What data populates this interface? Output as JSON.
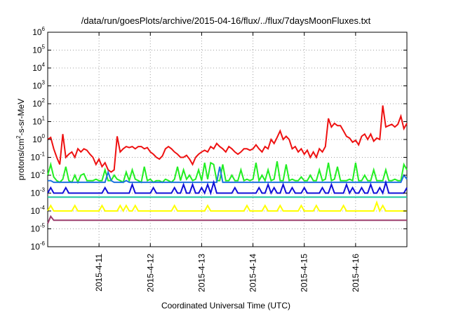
{
  "chart_data": {
    "type": "line",
    "title": "/data/run/goesPlots/archive/2015-04-16/flux/../flux/7daysMoonFluxes.txt",
    "xlabel": "Coordinated Universal Time (UTC)",
    "ylabel": "protons/cm²-s-sr-MeV",
    "ylabel_parts": {
      "a": "protons/cm",
      "sup": "2",
      "b": "-s-sr-MeV"
    },
    "yscale": "log",
    "ylim": [
      1e-06,
      1000000.0
    ],
    "xlim": [
      0,
      7
    ],
    "grid": true,
    "y_ticks": [
      {
        "exp": "-6",
        "value": 1e-06
      },
      {
        "exp": "-5",
        "value": 1e-05
      },
      {
        "exp": "-4",
        "value": 0.0001
      },
      {
        "exp": "-3",
        "value": 0.001
      },
      {
        "exp": "-2",
        "value": 0.01
      },
      {
        "exp": "-1",
        "value": 0.1
      },
      {
        "exp": "0",
        "value": 1
      },
      {
        "exp": "1",
        "value": 10
      },
      {
        "exp": "2",
        "value": 100
      },
      {
        "exp": "3",
        "value": 1000
      },
      {
        "exp": "4",
        "value": 10000
      },
      {
        "exp": "5",
        "value": 100000
      },
      {
        "exp": "6",
        "value": 1000000
      }
    ],
    "y_tick_base": "10",
    "x_ticks": [
      {
        "label": "2015-4-11",
        "value": 1
      },
      {
        "label": "2015-4-12",
        "value": 2
      },
      {
        "label": "2015-4-13",
        "value": 3
      },
      {
        "label": "2015-4-14",
        "value": 4
      },
      {
        "label": "2015-4-15",
        "value": 5
      },
      {
        "label": "2015-4-16",
        "value": 6
      }
    ],
    "series": [
      {
        "color": "#ee1111",
        "values": [
          1,
          1.3,
          0.3,
          0.1,
          0.04,
          2,
          0.1,
          0.15,
          0.2,
          0.1,
          0.3,
          0.2,
          0.3,
          0.25,
          0.15,
          0.1,
          0.04,
          0.08,
          0.03,
          0.05,
          0.02,
          0.015,
          0.02,
          1.5,
          0.2,
          0.3,
          0.4,
          0.35,
          0.4,
          0.3,
          0.4,
          0.4,
          0.3,
          0.35,
          0.2,
          0.15,
          0.1,
          0.08,
          0.12,
          0.3,
          0.4,
          0.3,
          0.2,
          0.15,
          0.1,
          0.1,
          0.13,
          0.08,
          0.04,
          0.1,
          0.15,
          0.2,
          0.25,
          0.2,
          0.4,
          0.3,
          0.6,
          0.4,
          0.3,
          0.2,
          0.4,
          0.3,
          0.2,
          0.15,
          0.2,
          0.3,
          0.3,
          0.25,
          0.3,
          0.5,
          0.3,
          0.2,
          0.4,
          0.3,
          1,
          0.6,
          1.3,
          3,
          1,
          1.5,
          1,
          0.3,
          0.4,
          0.2,
          0.3,
          0.15,
          0.25,
          0.1,
          0.2,
          0.1,
          0.3,
          0.2,
          0.4,
          15,
          5,
          8,
          6,
          6,
          3,
          1.5,
          1.2,
          0.7,
          0.9,
          0.5,
          1.5,
          2,
          1,
          2,
          0.8,
          1.2,
          1,
          80,
          5,
          6,
          7,
          5,
          7,
          20,
          4,
          8
        ]
      },
      {
        "color": "#22ee22",
        "values": [
          0.01,
          0.04,
          0.008,
          0.005,
          0.004,
          0.006,
          0.03,
          0.005,
          0.004,
          0.01,
          0.004,
          0.01,
          0.012,
          0.005,
          0.005,
          0.005,
          0.006,
          0.005,
          0.005,
          0.02,
          0.005,
          0.005,
          0.01,
          0.006,
          0.005,
          0.004,
          0.015,
          0.005,
          0.02,
          0.006,
          0.005,
          0.004,
          0.03,
          0.005,
          0.006,
          0.004,
          0.005,
          0.005,
          0.004,
          0.006,
          0.005,
          0.004,
          0.006,
          0.03,
          0.005,
          0.02,
          0.006,
          0.01,
          0.005,
          0.006,
          0.02,
          0.005,
          0.05,
          0.006,
          0.05,
          0.04,
          0.005,
          0.005,
          0.04,
          0.005,
          0.005,
          0.01,
          0.005,
          0.005,
          0.02,
          0.005,
          0.006,
          0.005,
          0.006,
          0.05,
          0.005,
          0.01,
          0.005,
          0.02,
          0.005,
          0.006,
          0.06,
          0.005,
          0.005,
          0.04,
          0.005,
          0.006,
          0.005,
          0.005,
          0.008,
          0.005,
          0.005,
          0.01,
          0.005,
          0.005,
          0.02,
          0.005,
          0.006,
          0.05,
          0.005,
          0.006,
          0.03,
          0.005,
          0.005,
          0.005,
          0.006,
          0.005,
          0.05,
          0.005,
          0.005,
          0.01,
          0.005,
          0.005,
          0.02,
          0.005,
          0.005,
          0.005,
          0.02,
          0.005,
          0.005,
          0.006,
          0.005,
          0.005,
          0.04,
          0.02
        ]
      },
      {
        "color": "#1e72e0",
        "values": [
          0.005,
          0.005,
          0.004,
          0.004,
          0.004,
          0.004,
          0.004,
          0.004,
          0.004,
          0.004,
          0.004,
          0.004,
          0.004,
          0.004,
          0.004,
          0.004,
          0.004,
          0.004,
          0.004,
          0.004,
          0.015,
          0.005,
          0.004,
          0.004,
          0.004,
          0.004,
          0.005,
          0.004,
          0.004,
          0.004,
          0.004,
          0.004,
          0.004,
          0.004,
          0.004,
          0.004,
          0.004,
          0.004,
          0.004,
          0.004,
          0.004,
          0.004,
          0.004,
          0.004,
          0.004,
          0.004,
          0.004,
          0.004,
          0.004,
          0.004,
          0.004,
          0.004,
          0.004,
          0.004,
          0.004,
          0.004,
          0.004,
          0.03,
          0.004,
          0.004,
          0.004,
          0.004,
          0.004,
          0.004,
          0.004,
          0.004,
          0.004,
          0.004,
          0.004,
          0.004,
          0.004,
          0.004,
          0.004,
          0.004,
          0.004,
          0.004,
          0.004,
          0.004,
          0.004,
          0.004,
          0.004,
          0.004,
          0.004,
          0.004,
          0.004,
          0.004,
          0.004,
          0.004,
          0.004,
          0.004,
          0.004,
          0.004,
          0.004,
          0.004,
          0.004,
          0.004,
          0.004,
          0.004,
          0.004,
          0.004,
          0.004,
          0.004,
          0.004,
          0.004,
          0.004,
          0.004,
          0.004,
          0.004,
          0.004,
          0.004,
          0.004,
          0.004,
          0.004,
          0.004,
          0.004,
          0.004,
          0.004,
          0.004,
          0.01,
          0.006
        ]
      },
      {
        "color": "#1010d8",
        "values": [
          0.001,
          0.002,
          0.001,
          0.001,
          0.001,
          0.001,
          0.002,
          0.001,
          0.001,
          0.001,
          0.001,
          0.001,
          0.001,
          0.001,
          0.001,
          0.001,
          0.001,
          0.001,
          0.001,
          0.002,
          0.001,
          0.001,
          0.001,
          0.001,
          0.001,
          0.001,
          0.001,
          0.001,
          0.003,
          0.001,
          0.001,
          0.001,
          0.001,
          0.001,
          0.001,
          0.002,
          0.001,
          0.001,
          0.001,
          0.001,
          0.001,
          0.001,
          0.002,
          0.001,
          0.001,
          0.003,
          0.001,
          0.001,
          0.003,
          0.001,
          0.001,
          0.002,
          0.001,
          0.003,
          0.001,
          0.004,
          0.001,
          0.001,
          0.001,
          0.001,
          0.001,
          0.001,
          0.002,
          0.001,
          0.001,
          0.001,
          0.001,
          0.001,
          0.001,
          0.001,
          0.002,
          0.001,
          0.001,
          0.003,
          0.001,
          0.002,
          0.001,
          0.001,
          0.003,
          0.001,
          0.001,
          0.002,
          0.001,
          0.001,
          0.001,
          0.002,
          0.001,
          0.001,
          0.001,
          0.001,
          0.001,
          0.002,
          0.001,
          0.001,
          0.003,
          0.001,
          0.001,
          0.001,
          0.001,
          0.003,
          0.001,
          0.002,
          0.001,
          0.001,
          0.002,
          0.001,
          0.001,
          0.003,
          0.001,
          0.001,
          0.002,
          0.001,
          0.004,
          0.001,
          0.001,
          0.001,
          0.001,
          0.001,
          0.001,
          0.002
        ]
      },
      {
        "color": "#20c8a0",
        "values": [
          0.0006,
          0.0006,
          0.0006,
          0.0006,
          0.0006,
          0.0006,
          0.0006,
          0.0006,
          0.0006,
          0.0006,
          0.0006,
          0.0006,
          0.0006,
          0.0006,
          0.0006,
          0.0006,
          0.0006,
          0.0006,
          0.0006,
          0.0006,
          0.0006,
          0.0006,
          0.0006,
          0.0006,
          0.0006,
          0.0006,
          0.0006,
          0.0006,
          0.0006,
          0.0006,
          0.0006,
          0.0006,
          0.0006,
          0.0006,
          0.0006,
          0.0006,
          0.0006,
          0.0006,
          0.0006,
          0.0006,
          0.0006,
          0.0006,
          0.0006,
          0.0006,
          0.0006,
          0.0006,
          0.0006,
          0.0006,
          0.0006,
          0.0006,
          0.0006,
          0.0006,
          0.0006,
          0.0006,
          0.0006,
          0.0006,
          0.0006,
          0.0006,
          0.0006,
          0.0006,
          0.0006,
          0.0006,
          0.0006,
          0.0006,
          0.0006,
          0.0006,
          0.0006,
          0.0006,
          0.0006,
          0.0006,
          0.0006,
          0.0006,
          0.0006,
          0.0006,
          0.0006,
          0.0006,
          0.0006,
          0.0006,
          0.0006,
          0.0006,
          0.0006,
          0.0006,
          0.0006,
          0.0006,
          0.0006,
          0.0006,
          0.0006,
          0.0006,
          0.0006,
          0.0006,
          0.0006,
          0.0006,
          0.0006,
          0.0006,
          0.0006,
          0.0006,
          0.0006,
          0.0006,
          0.0006,
          0.0006,
          0.0006,
          0.0006,
          0.0006,
          0.0006,
          0.0006,
          0.0006,
          0.0006,
          0.0006,
          0.0006,
          0.0006,
          0.0006,
          0.0006,
          0.0006,
          0.0006,
          0.0006,
          0.0006,
          0.0006,
          0.0006,
          0.0006,
          0.0006
        ]
      },
      {
        "color": "#ffff00",
        "values": [
          0.0001,
          0.0002,
          0.0001,
          0.0001,
          0.0001,
          0.0001,
          0.0001,
          0.0001,
          0.0001,
          0.0002,
          0.0001,
          0.0001,
          0.0001,
          0.0001,
          0.0001,
          0.0001,
          0.0001,
          0.0001,
          0.0002,
          0.0001,
          0.0001,
          0.0001,
          0.0001,
          0.0001,
          0.0002,
          0.0001,
          0.0002,
          0.0001,
          0.0001,
          0.0002,
          0.0001,
          0.0001,
          0.0001,
          0.0001,
          0.0001,
          0.0001,
          0.0001,
          0.0001,
          0.0001,
          0.0001,
          0.0001,
          0.0001,
          0.0002,
          0.0001,
          0.0001,
          0.0001,
          0.0001,
          0.0001,
          0.0001,
          0.0001,
          0.0001,
          0.0001,
          0.0001,
          0.0002,
          0.0001,
          0.0001,
          0.0001,
          0.0001,
          0.0001,
          0.0001,
          0.0001,
          0.0001,
          0.0001,
          0.0001,
          0.0001,
          0.0001,
          0.0002,
          0.0001,
          0.0001,
          0.0001,
          0.0001,
          0.0001,
          0.0002,
          0.0001,
          0.0001,
          0.0001,
          0.0001,
          0.0002,
          0.0001,
          0.0001,
          0.0001,
          0.0001,
          0.0001,
          0.0001,
          0.0002,
          0.0001,
          0.0001,
          0.0001,
          0.0001,
          0.0002,
          0.0001,
          0.0001,
          0.0001,
          0.0001,
          0.0001,
          0.0001,
          0.0001,
          0.0001,
          0.0002,
          0.0001,
          0.0001,
          0.0001,
          0.0001,
          0.0001,
          0.0001,
          0.0001,
          0.0001,
          0.0001,
          0.0001,
          0.0003,
          0.0001,
          0.0002,
          0.0001,
          0.0001,
          0.0001,
          0.0001,
          0.0001,
          0.0001,
          0.0001,
          0.0001
        ]
      },
      {
        "color": "#9b3d6c",
        "values": [
          2e-05,
          5e-05,
          3e-05,
          3e-05,
          3e-05,
          3e-05,
          3e-05,
          3e-05,
          3e-05,
          3e-05,
          3e-05,
          3e-05,
          3e-05,
          3e-05,
          3e-05,
          3e-05,
          3e-05,
          3e-05,
          3e-05,
          3e-05,
          3e-05,
          3e-05,
          3e-05,
          3e-05,
          3e-05,
          3e-05,
          3e-05,
          3e-05,
          3e-05,
          3e-05,
          3e-05,
          3e-05,
          3e-05,
          3e-05,
          3e-05,
          3e-05,
          3e-05,
          3e-05,
          3e-05,
          3e-05,
          3e-05,
          3e-05,
          3e-05,
          3e-05,
          3e-05,
          3e-05,
          3e-05,
          3e-05,
          3e-05,
          3e-05,
          3e-05,
          3e-05,
          3e-05,
          3e-05,
          3e-05,
          3e-05,
          3e-05,
          3e-05,
          3e-05,
          3e-05,
          3e-05,
          3e-05,
          3e-05,
          3e-05,
          3e-05,
          3e-05,
          3e-05,
          3e-05,
          3e-05,
          3e-05,
          3e-05,
          3e-05,
          3e-05,
          3e-05,
          3e-05,
          3e-05,
          3e-05,
          3e-05,
          3e-05,
          3e-05,
          3e-05,
          3e-05,
          3e-05,
          3e-05,
          3e-05,
          3e-05,
          3e-05,
          3e-05,
          3e-05,
          3e-05,
          3e-05,
          3e-05,
          3e-05,
          3e-05,
          3e-05,
          3e-05,
          3e-05,
          3e-05,
          3e-05,
          3e-05,
          3e-05,
          3e-05,
          3e-05,
          3e-05,
          3e-05,
          3e-05,
          3e-05,
          3e-05,
          3e-05,
          3e-05,
          3e-05,
          3e-05,
          3e-05,
          3e-05,
          3e-05,
          3e-05,
          3e-05,
          3e-05,
          3e-05,
          3e-05
        ]
      }
    ]
  }
}
